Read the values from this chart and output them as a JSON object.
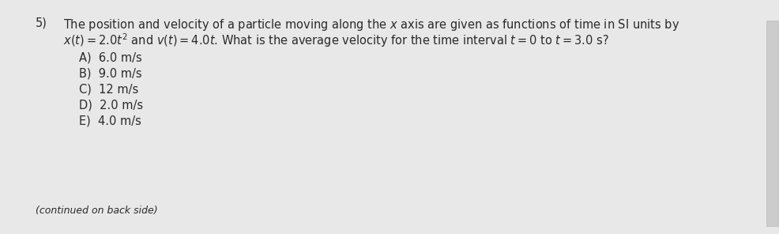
{
  "question_number": "5)",
  "line1": "The position and velocity of a particle moving along the $x$ axis are given as functions of time in SI units by",
  "line2_pre": "$x(t) = 2.0t^2$ and $v(t) = 4.0t$. What is the average velocity for the time interval $t = 0$ to $t = 3.0$ s?",
  "choices": [
    "A)  6.0 m/s",
    "B)  9.0 m/s",
    "C)  12 m/s",
    "D)  2.0 m/s",
    "E)  4.0 m/s"
  ],
  "footer": "(continued on back side)",
  "bg_color": "#e8e8e8",
  "text_color": "#2a2a2a",
  "font_size_question": 10.5,
  "font_size_choices": 10.5,
  "font_size_footer": 9.0
}
